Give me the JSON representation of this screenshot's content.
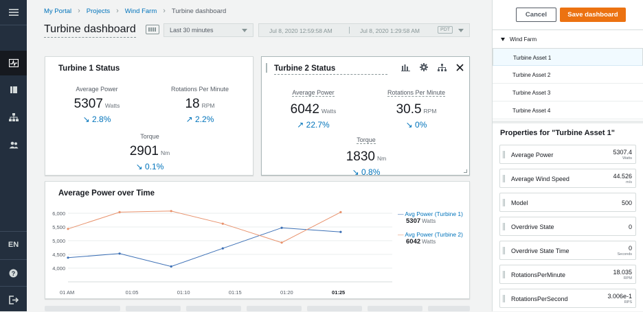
{
  "breadcrumb": [
    "My Portal",
    "Projects",
    "Wind Farm",
    "Turbine dashboard"
  ],
  "page_title": "Turbine dashboard",
  "time_select": "Last 30 minutes",
  "date_range": {
    "start": "Jul 8, 2020 12:59:58 AM",
    "end": "Jul 8, 2020 1:29:58 AM",
    "tz": "PDT"
  },
  "rail": {
    "lang": "EN"
  },
  "turbine1": {
    "title": "Turbine 1 Status",
    "kpis": [
      {
        "label": "Average Power",
        "value": "5307",
        "unit": "Watts",
        "delta": "↘ 2.8%"
      },
      {
        "label": "Rotations Per Minute",
        "value": "18",
        "unit": "RPM",
        "delta": "↗ 2.2%"
      },
      {
        "label": "Torque",
        "value": "2901",
        "unit": "Nm",
        "delta": "↘ 0.1%"
      }
    ]
  },
  "turbine2": {
    "title": "Turbine 2 Status",
    "kpis": [
      {
        "label": "Average Power",
        "value": "6042",
        "unit": "Watts",
        "delta": "↗ 22.7%"
      },
      {
        "label": "Rotations Per Minute",
        "value": "30.5",
        "unit": "RPM",
        "delta": "↘ 0%"
      },
      {
        "label": "Torque",
        "value": "1830",
        "unit": "Nm",
        "delta": "↘ 0.8%"
      }
    ]
  },
  "chart_card": {
    "title": "Average Power over Time"
  },
  "chart_data": {
    "type": "line",
    "title": "Average Power over Time",
    "x": [
      "01 AM",
      "01:05",
      "01:10",
      "01:15",
      "01:20",
      "01:25"
    ],
    "y_ticks": [
      "4,000",
      "4,500",
      "5,000",
      "5,500",
      "6,000"
    ],
    "ylim": [
      3750,
      6250
    ],
    "series": [
      {
        "name": "Avg Power (Turbine 1)",
        "color": "#3b6fb5",
        "x": [
          0,
          3.5,
          7,
          10.5,
          14.5,
          18.5
        ],
        "values": [
          4380,
          4530,
          4060,
          4720,
          5470,
          5320
        ],
        "last_value": "5307",
        "unit": "Watts"
      },
      {
        "name": "Avg Power (Turbine 2)",
        "color": "#e8916b",
        "x": [
          0,
          3.5,
          7,
          10.5,
          14.5,
          18.5
        ],
        "values": [
          5430,
          6040,
          6080,
          5620,
          4930,
          6040
        ],
        "last_value": "6042",
        "unit": "Watts"
      }
    ]
  },
  "panel": {
    "cancel": "Cancel",
    "save": "Save dashboard",
    "tree_root": "Wind Farm",
    "assets": [
      "Turbine Asset 1",
      "Turbine Asset 2",
      "Turbine Asset 3",
      "Turbine Asset 4"
    ],
    "props_title": "Properties for \"Turbine Asset 1\"",
    "properties": [
      {
        "name": "Average Power",
        "value": "5307.4",
        "unit": "Watts"
      },
      {
        "name": "Average Wind Speed",
        "value": "44.526",
        "unit": "m/s"
      },
      {
        "name": "Model",
        "value": "500",
        "unit": ""
      },
      {
        "name": "Overdrive State",
        "value": "0",
        "unit": ""
      },
      {
        "name": "Overdrive State Time",
        "value": "0",
        "unit": "Seconds"
      },
      {
        "name": "RotationsPerMinute",
        "value": "18.035",
        "unit": "RPM"
      },
      {
        "name": "RotationsPerSecond",
        "value": "3.006e-1",
        "unit": "RPS"
      }
    ]
  }
}
